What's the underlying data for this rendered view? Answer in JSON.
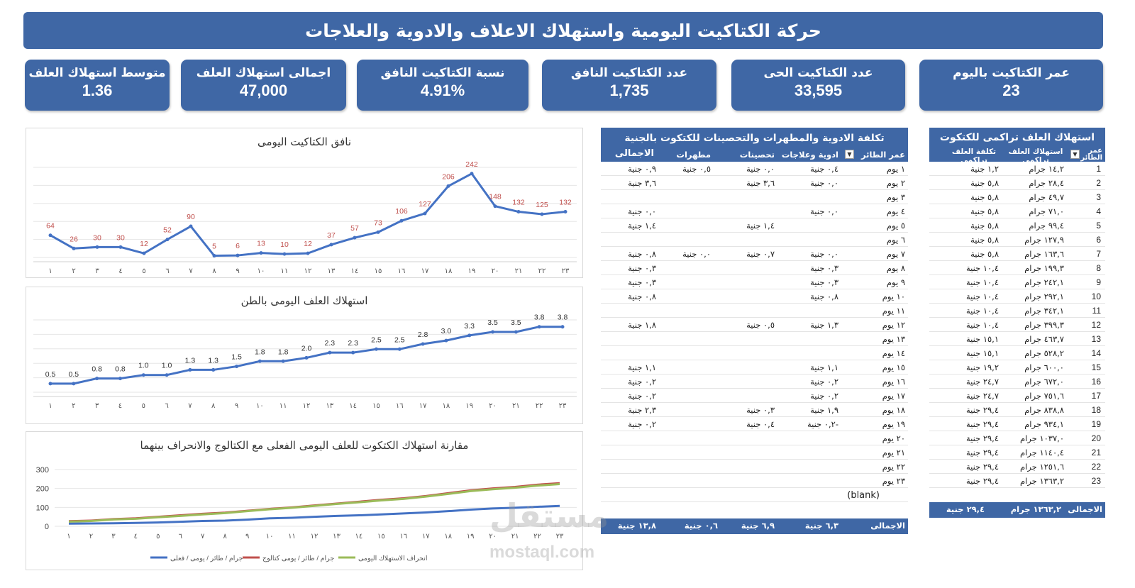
{
  "title": "حركة الكتاكيت اليومية واستهلاك الاعلاف والادوية والعلاجات",
  "kpis": [
    {
      "label": "عمر الكتاكيت باليوم",
      "value": "23"
    },
    {
      "label": "عدد الكتاكيت الحى",
      "value": "33,595"
    },
    {
      "label": "عدد الكتاكيت النافق",
      "value": "1,735"
    },
    {
      "label": "نسبة الكتاكيت النافق",
      "value": "4.91%"
    },
    {
      "label": "اجمالى استهلاك العلف",
      "value": "47,000"
    },
    {
      "label": "متوسط استهلاك العلف",
      "value": "1.36"
    }
  ],
  "colors": {
    "accent": "#3f67a5",
    "line": "#4472c4",
    "label_red": "#c0504d",
    "series_red": "#c0504d",
    "series_green": "#9bbb59"
  },
  "chart_data": [
    {
      "type": "line",
      "title": "نافق الكتاكيت اليومى",
      "categories": [
        "١",
        "٢",
        "٣",
        "٤",
        "٥",
        "٦",
        "٧",
        "٨",
        "٩",
        "١٠",
        "١١",
        "١٢",
        "١٣",
        "١٤",
        "١٥",
        "١٦",
        "١٧",
        "١٨",
        "١٩",
        "٢٠",
        "٢١",
        "٢٢",
        "٢٣"
      ],
      "values": [
        64,
        26,
        30,
        30,
        12,
        52,
        90,
        5,
        6,
        13,
        10,
        12,
        37,
        57,
        73,
        106,
        127,
        206,
        242,
        148,
        132,
        125,
        132
      ],
      "data_labels": [
        "64",
        "26",
        "30",
        "30",
        "12",
        "52",
        "90",
        "5",
        "6",
        "13",
        "10",
        "12",
        "37",
        "57",
        "73",
        "106",
        "127",
        "206",
        "242",
        "148",
        "132",
        "125",
        "132"
      ],
      "ylim": [
        0,
        260
      ],
      "grid": true
    },
    {
      "type": "line",
      "title": "استهلاك العلف اليومى بالطن",
      "categories": [
        "١",
        "٢",
        "٣",
        "٤",
        "٥",
        "٦",
        "٧",
        "٨",
        "٩",
        "١٠",
        "١١",
        "١٢",
        "١٣",
        "١٤",
        "١٥",
        "١٦",
        "١٧",
        "١٨",
        "١٩",
        "٢٠",
        "٢١",
        "٢٢",
        "٢٣"
      ],
      "values": [
        0.5,
        0.5,
        0.8,
        0.8,
        1.0,
        1.0,
        1.3,
        1.3,
        1.5,
        1.8,
        1.8,
        2.0,
        2.3,
        2.3,
        2.5,
        2.5,
        2.8,
        3.0,
        3.3,
        3.5,
        3.5,
        3.8,
        3.8
      ],
      "data_labels": [
        "0.5",
        "0.5",
        "0.8",
        "0.8",
        "1.0",
        "1.0",
        "1.3",
        "1.3",
        "1.5",
        "1.8",
        "1.8",
        "2.0",
        "2.3",
        "2.3",
        "2.5",
        "2.5",
        "2.8",
        "3.0",
        "3.3",
        "3.5",
        "3.5",
        "3.8",
        "3.8"
      ],
      "ylim": [
        0,
        4.2
      ],
      "grid": true
    },
    {
      "type": "line",
      "title": "مقارنة استهلاك الكتكوت للعلف اليومى الفعلى مع الكتالوج والانحراف بينهما",
      "categories": [
        "١",
        "٢",
        "٣",
        "٤",
        "٥",
        "٦",
        "٧",
        "٨",
        "٩",
        "١٠",
        "١١",
        "١٢",
        "١٣",
        "١٤",
        "١٥",
        "١٦",
        "١٧",
        "١٨",
        "١٩",
        "٢٠",
        "٢١",
        "٢٢",
        "٢٣"
      ],
      "yticks": [
        "300",
        "200",
        "100",
        "0"
      ],
      "ylim": [
        0,
        300
      ],
      "legend_position": "bottom",
      "series": [
        {
          "name": "جرام / طائر / يومى / فعلى",
          "color": "#4472c4",
          "values": [
            14,
            15,
            16,
            18,
            20,
            24,
            28,
            30,
            35,
            42,
            45,
            50,
            55,
            58,
            63,
            68,
            73,
            80,
            88,
            94,
            98,
            103,
            108
          ]
        },
        {
          "name": "جرام / طائر / يومى كتالوج",
          "color": "#c0504d",
          "values": [
            27,
            30,
            38,
            42,
            50,
            58,
            66,
            72,
            82,
            92,
            100,
            110,
            120,
            130,
            140,
            148,
            160,
            175,
            190,
            200,
            208,
            220,
            228
          ]
        },
        {
          "name": "انحراف الاستهلاك اليومى",
          "color": "#9bbb59",
          "values": [
            25,
            28,
            36,
            40,
            48,
            55,
            63,
            70,
            80,
            90,
            98,
            108,
            118,
            127,
            137,
            145,
            157,
            171,
            186,
            196,
            204,
            215,
            223
          ]
        }
      ]
    }
  ],
  "med_table": {
    "title": "تكلفة الادوية والمطهرات والتحصينات للكتكوت بالجنية",
    "headers": [
      "عمر الطائر",
      "ادوية وعلاجات",
      "تحصينات",
      "مطهرات",
      "الاجمالى"
    ],
    "rows": [
      [
        "١ يوم",
        "٠,٤ جنية",
        "٠,٠ جنية",
        "٠,٥ جنية",
        "٠,٩ جنية"
      ],
      [
        "٢ يوم",
        "٠,٠ جنية",
        "٣,٦ جنية",
        "",
        "٣,٦ جنية"
      ],
      [
        "٣ يوم",
        "",
        "",
        "",
        ""
      ],
      [
        "٤ يوم",
        "٠,٠ جنية",
        "",
        "",
        "٠,٠ جنية"
      ],
      [
        "٥ يوم",
        "",
        "١,٤ جنية",
        "",
        "١,٤ جنية"
      ],
      [
        "٦ يوم",
        "",
        "",
        "",
        ""
      ],
      [
        "٧ يوم",
        "٠,٠ جنية",
        "٠,٧ جنية",
        "٠,٠ جنية",
        "٠,٨ جنية"
      ],
      [
        "٨ يوم",
        "٠,٣ جنية",
        "",
        "",
        "٠,٣ جنية"
      ],
      [
        "٩ يوم",
        "٠,٣ جنية",
        "",
        "",
        "٠,٣ جنية"
      ],
      [
        "١٠ يوم",
        "٠,٨ جنية",
        "",
        "",
        "٠,٨ جنية"
      ],
      [
        "١١ يوم",
        "",
        "",
        "",
        ""
      ],
      [
        "١٢ يوم",
        "١,٣ جنية",
        "٠,٥ جنية",
        "",
        "١,٨ جنية"
      ],
      [
        "١٣ يوم",
        "",
        "",
        "",
        ""
      ],
      [
        "١٤ يوم",
        "",
        "",
        "",
        ""
      ],
      [
        "١٥ يوم",
        "١,١ جنية",
        "",
        "",
        "١,١ جنية"
      ],
      [
        "١٦ يوم",
        "٠,٢ جنية",
        "",
        "",
        "٠,٢ جنية"
      ],
      [
        "١٧ يوم",
        "٠,٢ جنية",
        "",
        "",
        "٠,٢ جنية"
      ],
      [
        "١٨ يوم",
        "١,٩ جنية",
        "٠,٣ جنية",
        "",
        "٢,٣ جنية"
      ],
      [
        "١٩ يوم",
        "-٠,٢ جنية",
        "٠,٤ جنية",
        "",
        "٠,٢ جنية"
      ],
      [
        "٢٠ يوم",
        "",
        "",
        "",
        ""
      ],
      [
        "٢١ يوم",
        "",
        "",
        "",
        ""
      ],
      [
        "٢٢ يوم",
        "",
        "",
        "",
        ""
      ],
      [
        "٢٣ يوم",
        "",
        "",
        "",
        ""
      ],
      [
        "(blank)",
        "",
        "",
        "",
        ""
      ]
    ],
    "total": [
      "الاجمالى",
      "٦,٣ جنية",
      "٦,٩ جنية",
      "٠,٦ جنية",
      "١٣,٨ جنية"
    ]
  },
  "feed_table": {
    "title": "استهلاك العلف تراكمى للكتكوت",
    "headers": [
      "عمر الطائر",
      "استهلاك العلف تراكمى",
      "تكلفة العلف تراكمى"
    ],
    "rows": [
      [
        "1",
        "١٤,٢ جرام",
        "١,٢ جنية"
      ],
      [
        "2",
        "٢٨,٤ جرام",
        "٥,٨ جنية"
      ],
      [
        "3",
        "٤٩,٧ جرام",
        "٥,٨ جنية"
      ],
      [
        "4",
        "٧١,٠ جرام",
        "٥,٨ جنية"
      ],
      [
        "5",
        "٩٩,٤ جرام",
        "٥,٨ جنية"
      ],
      [
        "6",
        "١٢٧,٩ جرام",
        "٥,٨ جنية"
      ],
      [
        "7",
        "١٦٣,٦ جرام",
        "٥,٨ جنية"
      ],
      [
        "8",
        "١٩٩,٣ جرام",
        "١٠,٤ جنية"
      ],
      [
        "9",
        "٢٤٢,١ جرام",
        "١٠,٤ جنية"
      ],
      [
        "10",
        "٢٩٢,١ جرام",
        "١٠,٤ جنية"
      ],
      [
        "11",
        "٣٤٢,١ جرام",
        "١٠,٤ جنية"
      ],
      [
        "12",
        "٣٩٩,٣ جرام",
        "١٠,٤ جنية"
      ],
      [
        "13",
        "٤٦٣,٧ جرام",
        "١٥,١ جنية"
      ],
      [
        "14",
        "٥٢٨,٢ جرام",
        "١٥,١ جنية"
      ],
      [
        "15",
        "٦٠٠,٠ جرام",
        "١٩,٢ جنية"
      ],
      [
        "16",
        "٦٧٢,٠ جرام",
        "٢٤,٧ جنية"
      ],
      [
        "17",
        "٧٥١,٦ جرام",
        "٢٤,٧ جنية"
      ],
      [
        "18",
        "٨٣٨,٨ جرام",
        "٢٩,٤ جنية"
      ],
      [
        "19",
        "٩٣٤,١ جرام",
        "٢٩,٤ جنية"
      ],
      [
        "20",
        "١٠٣٧,٠ جرام",
        "٢٩,٤ جنية"
      ],
      [
        "21",
        "١١٤٠,٤ جرام",
        "٢٩,٤ جنية"
      ],
      [
        "22",
        "١٢٥١,٦ جرام",
        "٢٩,٤ جنية"
      ],
      [
        "23",
        "١٣٦٣,٢ جرام",
        "٢٩,٤ جنية"
      ]
    ],
    "total": [
      "الاجمالى",
      "١٣٦٣,٢ جرام",
      "٢٩,٤ جنية"
    ]
  },
  "watermark": {
    "ar": "مستقل",
    "latin": "mostaql.com"
  }
}
